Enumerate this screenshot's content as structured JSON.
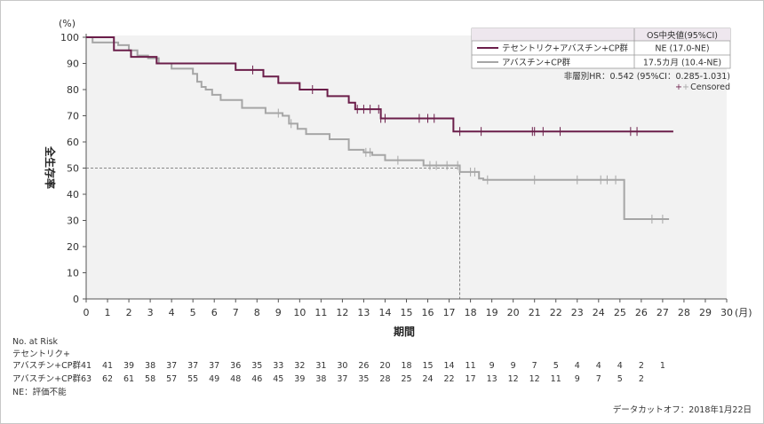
{
  "chart_data": {
    "type": "line",
    "title": "",
    "y_unit": "(%)",
    "ylabel": "全生存率",
    "xlabel": "期間",
    "x_unit": "(月)",
    "xlim": [
      0,
      30
    ],
    "ylim": [
      0,
      100
    ],
    "x_ticks": [
      0,
      1,
      2,
      3,
      4,
      5,
      6,
      7,
      8,
      9,
      10,
      11,
      12,
      13,
      14,
      15,
      16,
      17,
      18,
      19,
      20,
      21,
      22,
      23,
      24,
      25,
      26,
      27,
      28,
      29,
      30
    ],
    "y_ticks": [
      0,
      10,
      20,
      30,
      40,
      50,
      60,
      70,
      80,
      90,
      100
    ],
    "grid": false,
    "legend": {
      "placement": "top-right",
      "header": "OS中央値(95%CI)",
      "hr_text": "非層別HR：0.542 (95%CI：0.285-1.031)",
      "censored_text": "Censored",
      "censored_symbol": "+"
    },
    "series": [
      {
        "name": "テセントリク+アバスチン+CP群",
        "median": "NE (17.0-NE)",
        "color": "#6b1e4a",
        "steps": [
          [
            0,
            100
          ],
          [
            1.3,
            95
          ],
          [
            2.1,
            92.5
          ],
          [
            3.3,
            90
          ],
          [
            7.0,
            87.5
          ],
          [
            8.3,
            85
          ],
          [
            9.0,
            82.5
          ],
          [
            10.0,
            80
          ],
          [
            11.3,
            77.5
          ],
          [
            12.3,
            75
          ],
          [
            12.6,
            72.5
          ],
          [
            13.8,
            69
          ],
          [
            17.2,
            64
          ],
          [
            27.5,
            64
          ]
        ],
        "censored": [
          7.8,
          10.6,
          12.7,
          13.0,
          13.3,
          13.7,
          13.8,
          14.0,
          15.6,
          16.0,
          16.3,
          17.5,
          18.5,
          20.9,
          21.0,
          21.4,
          22.2,
          25.5,
          25.8
        ]
      },
      {
        "name": "アバスチン+CP群",
        "color": "#a6a6a6",
        "median": "17.5カ月 (10.4-NE)",
        "steps": [
          [
            0,
            100
          ],
          [
            0.3,
            98
          ],
          [
            1.5,
            97
          ],
          [
            2.0,
            95
          ],
          [
            2.4,
            93
          ],
          [
            2.9,
            92
          ],
          [
            3.4,
            90
          ],
          [
            4.0,
            88
          ],
          [
            5.0,
            86
          ],
          [
            5.2,
            83
          ],
          [
            5.4,
            81
          ],
          [
            5.6,
            80
          ],
          [
            5.9,
            78
          ],
          [
            6.3,
            76
          ],
          [
            7.3,
            73
          ],
          [
            8.4,
            71
          ],
          [
            9.2,
            70
          ],
          [
            9.5,
            67
          ],
          [
            9.9,
            65
          ],
          [
            10.3,
            63
          ],
          [
            11.4,
            61
          ],
          [
            12.3,
            57
          ],
          [
            13.0,
            56
          ],
          [
            13.4,
            55
          ],
          [
            14.0,
            53
          ],
          [
            15.8,
            51
          ],
          [
            17.5,
            48.5
          ],
          [
            18.4,
            46
          ],
          [
            18.6,
            45.5
          ],
          [
            25.0,
            45.5
          ],
          [
            25.2,
            30.5
          ],
          [
            27.3,
            30.5
          ]
        ],
        "censored": [
          9.0,
          9.6,
          13.1,
          13.3,
          14.6,
          16.1,
          16.4,
          16.9,
          17.4,
          18.0,
          18.2,
          18.8,
          21.0,
          23.0,
          24.1,
          24.4,
          24.8,
          26.5,
          27.0
        ]
      }
    ],
    "median_line": {
      "y": 50,
      "x": 17.5
    },
    "risk_table": {
      "title": "No. at Risk",
      "rows": [
        {
          "label_line1": "テセントリク+",
          "label_line2": "アバスチン+CP群",
          "values": [
            "41",
            "41",
            "39",
            "38",
            "37",
            "37",
            "37",
            "36",
            "35",
            "33",
            "32",
            "31",
            "30",
            "26",
            "20",
            "18",
            "15",
            "14",
            "11",
            "9",
            "9",
            "7",
            "5",
            "4",
            "4",
            "4",
            "2",
            "1"
          ]
        },
        {
          "label_line1": "",
          "label_line2": "アバスチン+CP群",
          "values": [
            "63",
            "62",
            "61",
            "58",
            "57",
            "55",
            "49",
            "48",
            "46",
            "45",
            "39",
            "38",
            "37",
            "35",
            "28",
            "25",
            "24",
            "22",
            "17",
            "13",
            "12",
            "12",
            "11",
            "9",
            "7",
            "5",
            "2"
          ]
        }
      ],
      "footnote": "NE：評価不能"
    },
    "data_cutoff": "データカットオフ：2018年1月22日"
  }
}
